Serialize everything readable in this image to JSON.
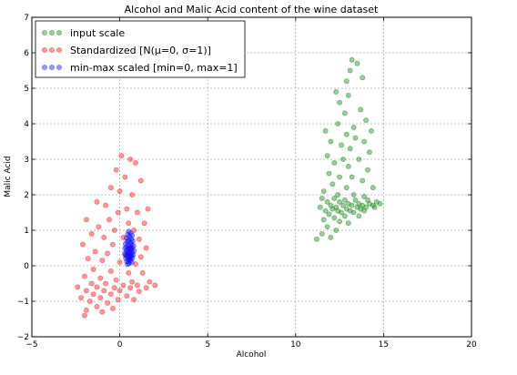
{
  "chart_data": {
    "type": "scatter",
    "title": "Alcohol and Malic Acid content of the wine dataset",
    "xlabel": "Alcohol",
    "ylabel": "Malic Acid",
    "xlim": [
      -5,
      20
    ],
    "ylim": [
      -2,
      7
    ],
    "xticks": [
      -5,
      0,
      5,
      10,
      15,
      20
    ],
    "yticks": [
      -2,
      -1,
      0,
      1,
      2,
      3,
      4,
      5,
      6,
      7
    ],
    "grid": true,
    "legend_position": "top-left",
    "series": [
      {
        "name": "input scale",
        "color": "#008000",
        "points": [
          [
            13.2,
            5.8
          ],
          [
            13.5,
            5.7
          ],
          [
            13.1,
            5.5
          ],
          [
            12.9,
            5.2
          ],
          [
            13.8,
            5.3
          ],
          [
            12.3,
            4.9
          ],
          [
            13.0,
            4.8
          ],
          [
            12.5,
            4.6
          ],
          [
            13.7,
            4.4
          ],
          [
            12.8,
            4.3
          ],
          [
            14.0,
            4.1
          ],
          [
            12.4,
            4.0
          ],
          [
            13.3,
            3.9
          ],
          [
            11.7,
            3.8
          ],
          [
            14.3,
            3.8
          ],
          [
            12.9,
            3.7
          ],
          [
            13.4,
            3.6
          ],
          [
            12.0,
            3.5
          ],
          [
            13.9,
            3.5
          ],
          [
            12.6,
            3.4
          ],
          [
            13.1,
            3.3
          ],
          [
            14.2,
            3.2
          ],
          [
            11.8,
            3.1
          ],
          [
            12.7,
            3.0
          ],
          [
            13.6,
            3.0
          ],
          [
            12.2,
            2.9
          ],
          [
            13.0,
            2.8
          ],
          [
            14.1,
            2.7
          ],
          [
            11.9,
            2.6
          ],
          [
            12.5,
            2.5
          ],
          [
            13.2,
            2.5
          ],
          [
            13.8,
            2.4
          ],
          [
            12.1,
            2.3
          ],
          [
            12.9,
            2.2
          ],
          [
            14.4,
            2.2
          ],
          [
            11.6,
            2.1
          ],
          [
            12.4,
            2.0
          ],
          [
            13.3,
            2.0
          ],
          [
            13.9,
            1.95
          ],
          [
            11.5,
            1.9
          ],
          [
            12.2,
            1.9
          ],
          [
            12.8,
            1.85
          ],
          [
            13.4,
            1.85
          ],
          [
            14.1,
            1.85
          ],
          [
            14.6,
            1.8
          ],
          [
            11.8,
            1.8
          ],
          [
            12.5,
            1.8
          ],
          [
            13.0,
            1.75
          ],
          [
            13.6,
            1.75
          ],
          [
            14.2,
            1.75
          ],
          [
            14.8,
            1.75
          ],
          [
            12.0,
            1.7
          ],
          [
            12.7,
            1.7
          ],
          [
            13.2,
            1.7
          ],
          [
            13.8,
            1.7
          ],
          [
            14.4,
            1.7
          ],
          [
            11.4,
            1.65
          ],
          [
            12.3,
            1.65
          ],
          [
            13.5,
            1.65
          ],
          [
            14.0,
            1.65
          ],
          [
            14.5,
            1.65
          ],
          [
            12.1,
            1.6
          ],
          [
            12.9,
            1.6
          ],
          [
            13.7,
            1.6
          ],
          [
            11.7,
            1.55
          ],
          [
            12.4,
            1.55
          ],
          [
            13.1,
            1.55
          ],
          [
            13.9,
            1.55
          ],
          [
            12.6,
            1.5
          ],
          [
            13.3,
            1.5
          ],
          [
            11.9,
            1.45
          ],
          [
            12.8,
            1.4
          ],
          [
            13.6,
            1.4
          ],
          [
            12.2,
            1.35
          ],
          [
            11.6,
            1.3
          ],
          [
            12.5,
            1.25
          ],
          [
            13.0,
            1.2
          ],
          [
            11.8,
            1.1
          ],
          [
            12.3,
            1.0
          ],
          [
            11.5,
            0.9
          ],
          [
            12.0,
            0.8
          ],
          [
            11.2,
            0.75
          ]
        ]
      },
      {
        "name": "Standardized [N(μ=0,  σ=1)]",
        "color": "#ff0000",
        "points": [
          [
            0.1,
            3.1
          ],
          [
            0.6,
            3.0
          ],
          [
            0.9,
            2.9
          ],
          [
            -0.2,
            2.7
          ],
          [
            0.3,
            2.5
          ],
          [
            1.2,
            2.4
          ],
          [
            -0.5,
            2.2
          ],
          [
            0.0,
            2.1
          ],
          [
            0.7,
            2.0
          ],
          [
            -1.3,
            1.8
          ],
          [
            -0.8,
            1.7
          ],
          [
            0.4,
            1.6
          ],
          [
            1.6,
            1.6
          ],
          [
            -0.1,
            1.5
          ],
          [
            1.0,
            1.5
          ],
          [
            -1.9,
            1.3
          ],
          [
            -0.6,
            1.3
          ],
          [
            0.5,
            1.2
          ],
          [
            1.4,
            1.2
          ],
          [
            -1.2,
            1.1
          ],
          [
            -0.3,
            1.0
          ],
          [
            0.8,
            1.0
          ],
          [
            -1.6,
            0.9
          ],
          [
            -0.9,
            0.8
          ],
          [
            0.2,
            0.8
          ],
          [
            1.1,
            0.75
          ],
          [
            -2.1,
            0.6
          ],
          [
            -0.4,
            0.6
          ],
          [
            0.6,
            0.5
          ],
          [
            1.5,
            0.5
          ],
          [
            -1.4,
            0.4
          ],
          [
            -0.7,
            0.35
          ],
          [
            0.3,
            0.3
          ],
          [
            1.2,
            0.25
          ],
          [
            -1.8,
            0.2
          ],
          [
            -1.0,
            0.15
          ],
          [
            0.0,
            0.1
          ],
          [
            0.9,
            0.05
          ],
          [
            -1.5,
            -0.1
          ],
          [
            -0.5,
            -0.15
          ],
          [
            0.5,
            -0.2
          ],
          [
            1.3,
            -0.2
          ],
          [
            -2.0,
            -0.3
          ],
          [
            -1.1,
            -0.35
          ],
          [
            -0.2,
            -0.4
          ],
          [
            0.7,
            -0.45
          ],
          [
            1.7,
            -0.45
          ],
          [
            -1.6,
            -0.5
          ],
          [
            -0.8,
            -0.5
          ],
          [
            0.2,
            -0.55
          ],
          [
            1.0,
            -0.55
          ],
          [
            2.0,
            -0.55
          ],
          [
            -2.4,
            -0.6
          ],
          [
            -1.3,
            -0.6
          ],
          [
            -0.3,
            -0.62
          ],
          [
            0.6,
            -0.62
          ],
          [
            1.5,
            -0.62
          ],
          [
            -1.9,
            -0.7
          ],
          [
            -0.9,
            -0.7
          ],
          [
            0.0,
            -0.7
          ],
          [
            1.1,
            -0.72
          ],
          [
            -1.5,
            -0.8
          ],
          [
            -0.5,
            -0.8
          ],
          [
            0.4,
            -0.85
          ],
          [
            -2.2,
            -0.9
          ],
          [
            -1.1,
            -0.9
          ],
          [
            -0.1,
            -0.95
          ],
          [
            0.8,
            -0.95
          ],
          [
            -1.7,
            -1.0
          ],
          [
            -0.7,
            -1.05
          ],
          [
            -1.3,
            -1.15
          ],
          [
            -0.4,
            -1.2
          ],
          [
            -1.9,
            -1.25
          ],
          [
            -1.0,
            -1.3
          ],
          [
            -2.0,
            -1.4
          ]
        ]
      },
      {
        "name": "min-max scaled [min=0, max=1]",
        "color": "#0000ff",
        "points": [
          [
            0.5,
            0.97
          ],
          [
            0.62,
            0.92
          ],
          [
            0.45,
            0.88
          ],
          [
            0.7,
            0.86
          ],
          [
            0.55,
            0.82
          ],
          [
            0.38,
            0.78
          ],
          [
            0.66,
            0.76
          ],
          [
            0.5,
            0.72
          ],
          [
            0.74,
            0.7
          ],
          [
            0.42,
            0.68
          ],
          [
            0.6,
            0.66
          ],
          [
            0.32,
            0.62
          ],
          [
            0.68,
            0.6
          ],
          [
            0.5,
            0.58
          ],
          [
            0.78,
            0.56
          ],
          [
            0.4,
            0.54
          ],
          [
            0.58,
            0.52
          ],
          [
            0.3,
            0.5
          ],
          [
            0.72,
            0.5
          ],
          [
            0.48,
            0.47
          ],
          [
            0.64,
            0.45
          ],
          [
            0.36,
            0.43
          ],
          [
            0.82,
            0.42
          ],
          [
            0.54,
            0.4
          ],
          [
            0.44,
            0.38
          ],
          [
            0.7,
            0.37
          ],
          [
            0.28,
            0.35
          ],
          [
            0.6,
            0.34
          ],
          [
            0.5,
            0.32
          ],
          [
            0.76,
            0.31
          ],
          [
            0.38,
            0.29
          ],
          [
            0.66,
            0.28
          ],
          [
            0.46,
            0.26
          ],
          [
            0.56,
            0.24
          ],
          [
            0.72,
            0.22
          ],
          [
            0.34,
            0.21
          ],
          [
            0.62,
            0.19
          ],
          [
            0.48,
            0.17
          ],
          [
            0.58,
            0.14
          ],
          [
            0.4,
            0.12
          ],
          [
            0.68,
            0.1
          ],
          [
            0.52,
            0.07
          ],
          [
            0.44,
            0.04
          ]
        ]
      }
    ]
  }
}
